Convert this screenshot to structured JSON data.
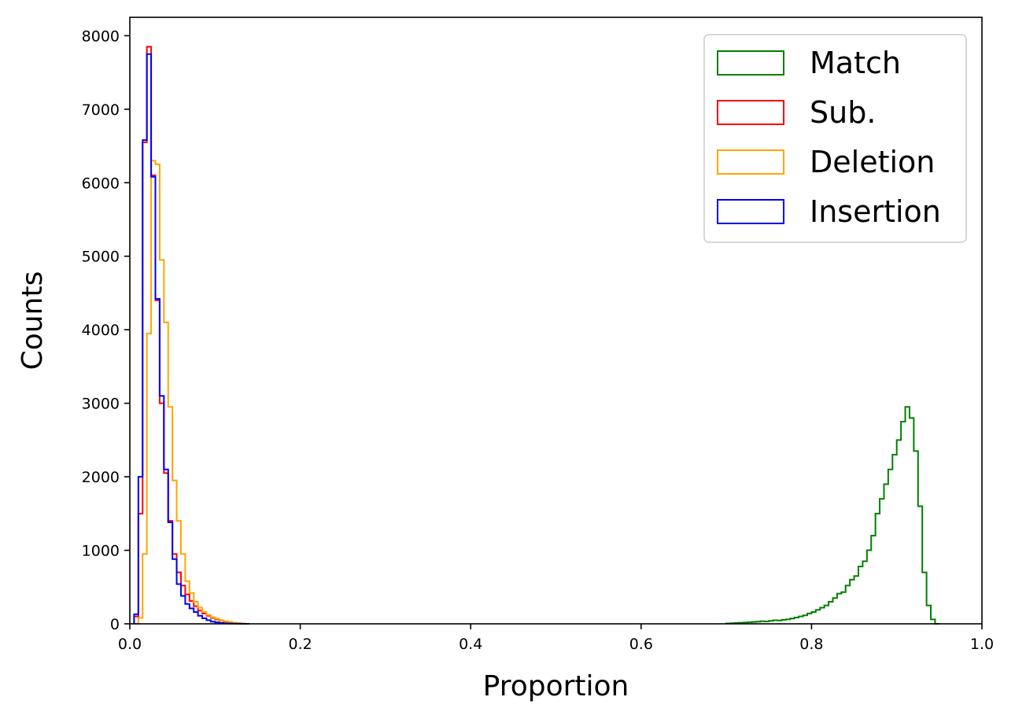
{
  "chart_data": {
    "type": "histogram",
    "xlabel": "Proportion",
    "ylabel": "Counts",
    "xlim": [
      0.0,
      1.0
    ],
    "ylim": [
      0,
      8250
    ],
    "x_ticks": [
      0.0,
      0.2,
      0.4,
      0.6,
      0.8,
      1.0
    ],
    "x_tick_labels": [
      "0.0",
      "0.2",
      "0.4",
      "0.6",
      "0.8",
      "1.0"
    ],
    "y_ticks": [
      0,
      1000,
      2000,
      3000,
      4000,
      5000,
      6000,
      7000,
      8000
    ],
    "y_tick_labels": [
      "0",
      "1000",
      "2000",
      "3000",
      "4000",
      "5000",
      "6000",
      "7000",
      "8000"
    ],
    "histtype": "step",
    "legend_position": "upper right",
    "series": [
      {
        "name": "Match",
        "color": "#008000",
        "bin_start": 0.7,
        "bin_width": 0.005,
        "counts": [
          5,
          8,
          12,
          15,
          18,
          22,
          25,
          30,
          35,
          32,
          40,
          48,
          45,
          55,
          60,
          72,
          85,
          100,
          115,
          140,
          160,
          190,
          220,
          250,
          300,
          350,
          410,
          430,
          520,
          600,
          650,
          780,
          850,
          1000,
          1200,
          1500,
          1700,
          1900,
          2100,
          2300,
          2500,
          2750,
          2950,
          2800,
          2350,
          1600,
          700,
          250,
          60,
          0
        ]
      },
      {
        "name": "Sub.",
        "color": "#ff0000",
        "bin_start": 0.005,
        "bin_width": 0.005,
        "counts": [
          100,
          1500,
          6550,
          7850,
          6100,
          4400,
          3000,
          2050,
          1400,
          950,
          700,
          520,
          400,
          310,
          240,
          180,
          140,
          110,
          80,
          60,
          45,
          30,
          20,
          12,
          8,
          5,
          0
        ]
      },
      {
        "name": "Deletion",
        "color": "#ffa500",
        "bin_start": 0.005,
        "bin_width": 0.005,
        "counts": [
          0,
          80,
          950,
          3950,
          6300,
          6250,
          4950,
          4100,
          2950,
          1950,
          1400,
          950,
          580,
          420,
          300,
          220,
          160,
          120,
          90,
          70,
          50,
          35,
          25,
          15,
          10,
          5,
          0
        ]
      },
      {
        "name": "Insertion",
        "color": "#0000ff",
        "bin_start": 0.005,
        "bin_width": 0.005,
        "counts": [
          130,
          2000,
          6580,
          7750,
          6080,
          4420,
          3100,
          2100,
          1380,
          880,
          540,
          380,
          270,
          210,
          160,
          110,
          75,
          50,
          30,
          20,
          12,
          7,
          4,
          2,
          1,
          0,
          0
        ]
      }
    ]
  }
}
